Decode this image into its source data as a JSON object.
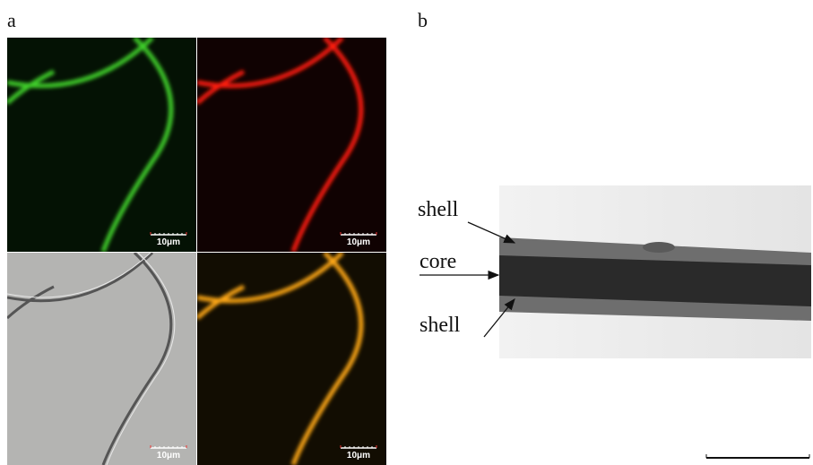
{
  "panel_a": {
    "label": "a",
    "scale_bars": [
      "10μm",
      "10μm",
      "10μm",
      "10μm"
    ]
  },
  "panel_b": {
    "label": "b",
    "annotations": [
      "shell",
      "core",
      "shell"
    ]
  }
}
